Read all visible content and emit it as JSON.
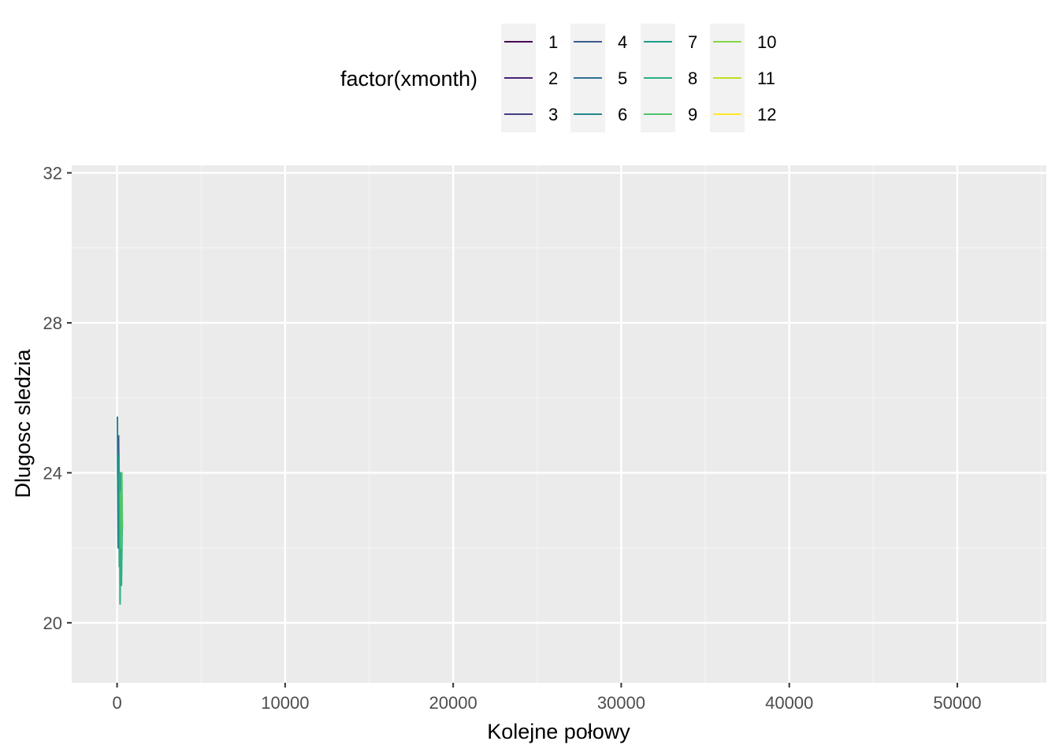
{
  "chart_data": {
    "type": "line",
    "xlabel": "Kolejne połowy",
    "ylabel": "Dlugosc sledzia",
    "xlim": [
      -2700,
      55300
    ],
    "ylim": [
      18.4,
      32.2
    ],
    "x_ticks": [
      0,
      10000,
      20000,
      30000,
      40000,
      50000
    ],
    "x_tick_labels": [
      "0",
      "10000",
      "20000",
      "30000",
      "40000",
      "50000"
    ],
    "y_ticks": [
      20,
      24,
      28,
      32
    ],
    "y_tick_labels": [
      "20",
      "24",
      "28",
      "32"
    ],
    "grid": true,
    "legend": {
      "title": "factor(xmonth)",
      "placement": "top",
      "entries": [
        "1",
        "2",
        "3",
        "4",
        "5",
        "6",
        "7",
        "8",
        "9",
        "10",
        "11",
        "12"
      ],
      "colors": [
        "#440154",
        "#482173",
        "#433E85",
        "#38598C",
        "#2D708E",
        "#25858E",
        "#1E9B8A",
        "#2BB07F",
        "#51C56A",
        "#85D54A",
        "#C2DF23",
        "#FDE725"
      ]
    },
    "series": [
      {
        "name": "6",
        "x": [
          20,
          60,
          100,
          140,
          180,
          220,
          260
        ],
        "y": [
          25.5,
          22.0,
          24.5,
          21.5,
          23.5,
          22.5,
          23.0
        ]
      },
      {
        "name": "4",
        "x": [
          90,
          130,
          170,
          210,
          250
        ],
        "y": [
          25.0,
          22.5,
          24.0,
          21.5,
          23.0
        ]
      },
      {
        "name": "7",
        "x": [
          110,
          150,
          190,
          230,
          270,
          310
        ],
        "y": [
          24.5,
          21.5,
          24.0,
          22.0,
          23.5,
          22.5
        ]
      },
      {
        "name": "8",
        "x": [
          140,
          180,
          220,
          260,
          300
        ],
        "y": [
          24.0,
          20.5,
          23.5,
          21.0,
          22.5
        ]
      },
      {
        "name": "9",
        "x": [
          200,
          240,
          280,
          320
        ],
        "y": [
          23.5,
          22.0,
          24.0,
          22.5
        ]
      }
    ]
  }
}
